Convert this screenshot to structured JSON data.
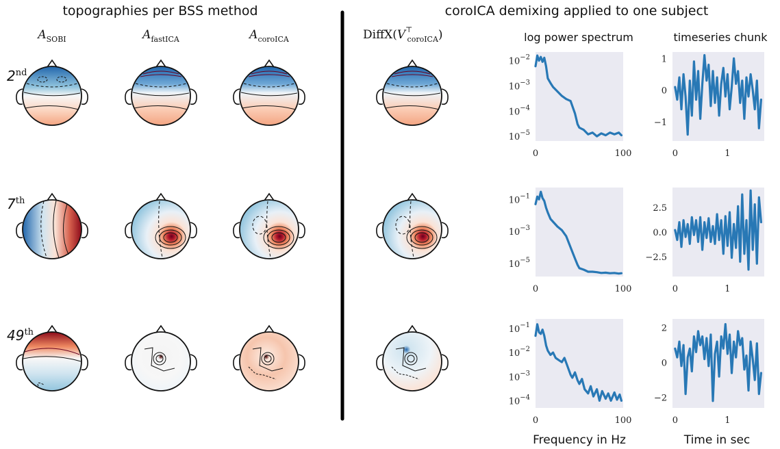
{
  "left_title": "topographies per BSS method",
  "right_title": "coroICA demixing applied to one subject",
  "methods": [
    {
      "base": "A",
      "sub": "SOBI"
    },
    {
      "base": "A",
      "sub": "fastICA"
    },
    {
      "base": "A",
      "sub": "coroICA"
    }
  ],
  "diff_label": {
    "pre": "DiffX(",
    "base": "V",
    "sup": "⊤",
    "sub": "coroICA",
    "post": ")"
  },
  "spectrum_title": "log power spectrum",
  "timeseries_title": "timeseries chunk",
  "rows": [
    {
      "num": "2",
      "suffix": "nd"
    },
    {
      "num": "7",
      "suffix": "th"
    },
    {
      "num": "49",
      "suffix": "th"
    }
  ],
  "x_label_spectrum": "Frequency in Hz",
  "x_label_time": "Time in sec",
  "colors": {
    "plot_bg": "#eaeaf2",
    "line": "#2878b5",
    "red": "#b2182b",
    "blue": "#2166ac"
  },
  "chart_data": [
    {
      "type": "line",
      "name": "spectrum-row-1",
      "ylog": true,
      "xlim": [
        0,
        100
      ],
      "ylim": [
        6.5e-06,
        0.022
      ],
      "xticks": [
        "0",
        "100"
      ],
      "yticks": [
        {
          "v": 0.01,
          "label": "10",
          "exp": "−2"
        },
        {
          "v": 0.001,
          "label": "10",
          "exp": "−3"
        },
        {
          "v": 0.0001,
          "label": "10",
          "exp": "−4"
        },
        {
          "v": 1e-05,
          "label": "10",
          "exp": "−5"
        }
      ],
      "x": [
        0,
        2,
        4,
        6,
        8,
        10,
        12,
        14,
        17,
        20,
        25,
        30,
        35,
        40,
        45,
        48,
        50,
        55,
        60,
        65,
        70,
        75,
        80,
        85,
        90,
        95,
        98
      ],
      "y": [
        0.006,
        0.016,
        0.01,
        0.014,
        0.009,
        0.013,
        0.006,
        0.002,
        0.0013,
        0.0009,
        0.0006,
        0.0004,
        0.0003,
        0.00025,
        8e-05,
        3e-05,
        2.2e-05,
        1.8e-05,
        1.2e-05,
        1.4e-05,
        1e-05,
        1.3e-05,
        1.1e-05,
        1.4e-05,
        1.2e-05,
        1.4e-05,
        1.1e-05
      ]
    },
    {
      "type": "line",
      "name": "timeseries-row-1",
      "xlim": [
        -0.05,
        1.7
      ],
      "ylim": [
        -1.6,
        1.2
      ],
      "xticks": [
        "0",
        "1"
      ],
      "yticks": [
        {
          "v": 1,
          "label": "1"
        },
        {
          "v": 0,
          "label": "0"
        },
        {
          "v": -1,
          "label": "−1"
        }
      ],
      "x": [
        0,
        0.04,
        0.08,
        0.12,
        0.16,
        0.2,
        0.24,
        0.28,
        0.32,
        0.36,
        0.4,
        0.44,
        0.48,
        0.52,
        0.56,
        0.6,
        0.64,
        0.68,
        0.72,
        0.76,
        0.8,
        0.84,
        0.88,
        0.92,
        0.96,
        1.0,
        1.04,
        1.08,
        1.12,
        1.16,
        1.2,
        1.24,
        1.28,
        1.32,
        1.36,
        1.4,
        1.44,
        1.48,
        1.52,
        1.56,
        1.6,
        1.64
      ],
      "y": [
        0.1,
        -0.3,
        0.4,
        -0.6,
        0.5,
        -0.2,
        -1.4,
        0.3,
        -0.8,
        0.9,
        -0.3,
        0.6,
        -0.9,
        0.2,
        1.1,
        0.3,
        0.8,
        -0.5,
        0.6,
        -0.4,
        0.4,
        -0.8,
        0.2,
        0.7,
        -0.2,
        0.5,
        -0.6,
        0.1,
        1.0,
        0.2,
        0.6,
        -0.4,
        0.3,
        -0.9,
        0.4,
        -0.2,
        0.5,
        0.0,
        -0.6,
        0.3,
        -1.2,
        -0.3
      ]
    },
    {
      "type": "line",
      "name": "spectrum-row-2",
      "ylog": true,
      "xlim": [
        0,
        100
      ],
      "ylim": [
        1.5e-06,
        0.55
      ],
      "xticks": [
        "0",
        "100"
      ],
      "yticks": [
        {
          "v": 0.1,
          "label": "10",
          "exp": "−1"
        },
        {
          "v": 0.001,
          "label": "10",
          "exp": "−3"
        },
        {
          "v": 1e-05,
          "label": "10",
          "exp": "−5"
        }
      ],
      "x": [
        0,
        2,
        4,
        6,
        8,
        10,
        12,
        14,
        17,
        20,
        25,
        30,
        35,
        40,
        45,
        48,
        50,
        55,
        60,
        65,
        70,
        75,
        80,
        85,
        90,
        95,
        98
      ],
      "y": [
        0.05,
        0.15,
        0.1,
        0.3,
        0.12,
        0.08,
        0.03,
        0.015,
        0.006,
        0.004,
        0.002,
        0.0012,
        0.0005,
        0.0001,
        2e-05,
        8e-06,
        5e-06,
        4e-06,
        3e-06,
        3e-06,
        2.8e-06,
        2.5e-06,
        2.6e-06,
        2.4e-06,
        2.5e-06,
        2.3e-06,
        2.4e-06
      ]
    },
    {
      "type": "line",
      "name": "timeseries-row-2",
      "xlim": [
        -0.05,
        1.7
      ],
      "ylim": [
        -4.5,
        4.5
      ],
      "xticks": [
        "0",
        "1"
      ],
      "yticks": [
        {
          "v": 2.5,
          "label": "2.5"
        },
        {
          "v": 0,
          "label": "0.0"
        },
        {
          "v": -2.5,
          "label": "−2.5"
        }
      ],
      "x": [
        0,
        0.04,
        0.08,
        0.12,
        0.16,
        0.2,
        0.24,
        0.28,
        0.32,
        0.36,
        0.4,
        0.44,
        0.48,
        0.52,
        0.56,
        0.6,
        0.64,
        0.68,
        0.72,
        0.76,
        0.8,
        0.84,
        0.88,
        0.92,
        0.96,
        1.0,
        1.04,
        1.08,
        1.12,
        1.16,
        1.2,
        1.24,
        1.28,
        1.32,
        1.36,
        1.4,
        1.44,
        1.48,
        1.52,
        1.56,
        1.6,
        1.64
      ],
      "y": [
        0.2,
        -0.8,
        1.0,
        -1.5,
        1.2,
        -0.5,
        0.8,
        -1.2,
        1.5,
        -0.3,
        1.2,
        -1.0,
        1.5,
        -1.8,
        1.0,
        -0.6,
        1.4,
        -1.0,
        0.6,
        -1.2,
        1.8,
        -0.8,
        1.2,
        -2.2,
        1.6,
        -1.4,
        2.0,
        -2.6,
        0.8,
        -1.6,
        2.6,
        -3.0,
        3.8,
        -2.2,
        1.2,
        -3.8,
        4.2,
        -1.8,
        2.8,
        -3.2,
        3.5,
        1.0
      ]
    },
    {
      "type": "line",
      "name": "spectrum-row-3",
      "ylog": true,
      "xlim": [
        0,
        100
      ],
      "ylim": [
        5e-05,
        0.25
      ],
      "xticks": [
        "0",
        "100"
      ],
      "yticks": [
        {
          "v": 0.1,
          "label": "10",
          "exp": "−1"
        },
        {
          "v": 0.01,
          "label": "10",
          "exp": "−2"
        },
        {
          "v": 0.001,
          "label": "10",
          "exp": "−3"
        },
        {
          "v": 0.0001,
          "label": "10",
          "exp": "−4"
        }
      ],
      "x": [
        0,
        2,
        4,
        6,
        8,
        10,
        12,
        14,
        17,
        20,
        23,
        26,
        30,
        33,
        36,
        40,
        42,
        45,
        48,
        50,
        53,
        56,
        60,
        63,
        66,
        70,
        73,
        76,
        80,
        83,
        86,
        90,
        93,
        96,
        98
      ],
      "y": [
        0.05,
        0.15,
        0.07,
        0.06,
        0.09,
        0.05,
        0.02,
        0.012,
        0.008,
        0.01,
        0.006,
        0.005,
        0.004,
        0.006,
        0.003,
        0.0012,
        0.0009,
        0.0015,
        0.0007,
        0.0005,
        0.0008,
        0.0003,
        0.0002,
        0.0004,
        0.00015,
        0.0003,
        0.0001,
        0.00025,
        0.00012,
        0.0002,
        0.0001,
        0.00022,
        0.00011,
        0.00018,
        0.0001
      ]
    },
    {
      "type": "line",
      "name": "timeseries-row-3",
      "xlim": [
        -0.05,
        1.7
      ],
      "ylim": [
        -2.6,
        2.5
      ],
      "xticks": [
        "0",
        "1"
      ],
      "yticks": [
        {
          "v": 2,
          "label": "2"
        },
        {
          "v": 0,
          "label": "0"
        },
        {
          "v": -2,
          "label": "−2"
        }
      ],
      "x": [
        0,
        0.04,
        0.08,
        0.12,
        0.16,
        0.2,
        0.24,
        0.28,
        0.32,
        0.36,
        0.4,
        0.44,
        0.48,
        0.52,
        0.56,
        0.6,
        0.64,
        0.68,
        0.72,
        0.76,
        0.8,
        0.84,
        0.88,
        0.92,
        0.96,
        1.0,
        1.04,
        1.08,
        1.12,
        1.16,
        1.2,
        1.24,
        1.28,
        1.32,
        1.36,
        1.4,
        1.44,
        1.48,
        1.52,
        1.56,
        1.6,
        1.64
      ],
      "y": [
        0.8,
        0.3,
        1.2,
        -0.2,
        1.0,
        -1.8,
        0.3,
        0.8,
        -0.5,
        1.5,
        0.6,
        1.8,
        1.0,
        1.5,
        0.2,
        1.4,
        -0.2,
        1.6,
        -2.2,
        0.5,
        1.2,
        -0.8,
        1.5,
        0.8,
        2.2,
        0.5,
        1.6,
        -0.6,
        1.2,
        0.3,
        1.8,
        1.0,
        1.4,
        -0.4,
        0.4,
        -1.6,
        1.2,
        0.2,
        -1.0,
        1.1,
        -1.8,
        -0.6
      ]
    }
  ]
}
